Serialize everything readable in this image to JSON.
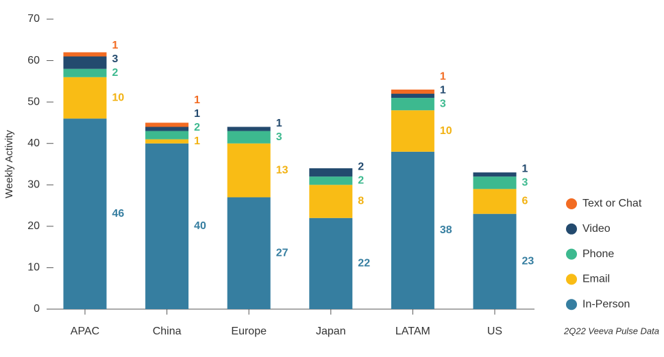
{
  "chart_data": {
    "type": "stacked_bar",
    "y_label": "Weekly Activity",
    "source": "2Q22 Veeva Pulse Data",
    "categories": [
      "APAC",
      "China",
      "Europe",
      "Japan",
      "LATAM",
      "US"
    ],
    "series": [
      {
        "name": "In-Person",
        "color": "#367ea0",
        "label_color": "#367ea0",
        "values": [
          46,
          40,
          27,
          22,
          38,
          23
        ]
      },
      {
        "name": "Email",
        "color": "#f9bc15",
        "label_color": "#f2b212",
        "values": [
          10,
          1,
          13,
          8,
          10,
          6
        ]
      },
      {
        "name": "Phone",
        "color": "#3db98f",
        "label_color": "#3db98f",
        "values": [
          2,
          2,
          3,
          2,
          3,
          3
        ]
      },
      {
        "name": "Video",
        "color": "#234a6e",
        "label_color": "#234a6e",
        "values": [
          3,
          1,
          1,
          2,
          1,
          1
        ]
      },
      {
        "name": "Text or Chat",
        "color": "#f26b22",
        "label_color": "#f26b22",
        "values": [
          1,
          1,
          null,
          null,
          1,
          null
        ]
      }
    ],
    "ylim": [
      0,
      70
    ],
    "yticks": [
      0,
      10,
      20,
      30,
      40,
      50,
      60,
      70
    ]
  }
}
